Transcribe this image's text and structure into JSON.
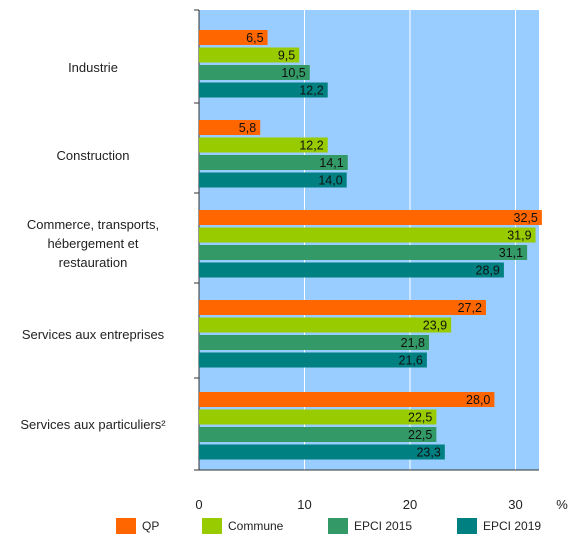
{
  "chart_data": {
    "type": "bar",
    "orientation": "horizontal",
    "categories": [
      [
        "Industrie"
      ],
      [
        "Construction"
      ],
      [
        "Commerce, transports,",
        "hébergement et",
        "restauration"
      ],
      [
        "Services aux entreprises"
      ],
      [
        "Services aux particuliers²"
      ]
    ],
    "series": [
      {
        "name": "QP",
        "color": "#ff6600",
        "values": [
          6.5,
          5.8,
          32.5,
          27.2,
          28.0
        ],
        "labels": [
          "6,5",
          "5,8",
          "32,5",
          "27,2",
          "28,0"
        ]
      },
      {
        "name": "Commune",
        "color": "#99cc00",
        "values": [
          9.5,
          12.2,
          31.9,
          23.9,
          22.5
        ],
        "labels": [
          "9,5",
          "12,2",
          "31,9",
          "23,9",
          "22,5"
        ]
      },
      {
        "name": "EPCI 2015",
        "color": "#339966",
        "values": [
          10.5,
          14.1,
          31.1,
          21.8,
          22.5
        ],
        "labels": [
          "10,5",
          "14,1",
          "31,1",
          "21,8",
          "22,5"
        ]
      },
      {
        "name": "EPCI 2019",
        "color": "#008080",
        "values": [
          12.2,
          14.0,
          28.9,
          21.6,
          23.3
        ],
        "labels": [
          "12,2",
          "14,0",
          "28,9",
          "21,6",
          "23,3"
        ]
      }
    ],
    "xlim": [
      0,
      32.5
    ],
    "xticks": [
      0,
      10,
      20,
      30
    ],
    "xtick_labels": [
      "0",
      "10",
      "20",
      "30"
    ],
    "unit": "%",
    "plot_background": "#99ccff",
    "grid": true,
    "legend_position": "bottom"
  }
}
